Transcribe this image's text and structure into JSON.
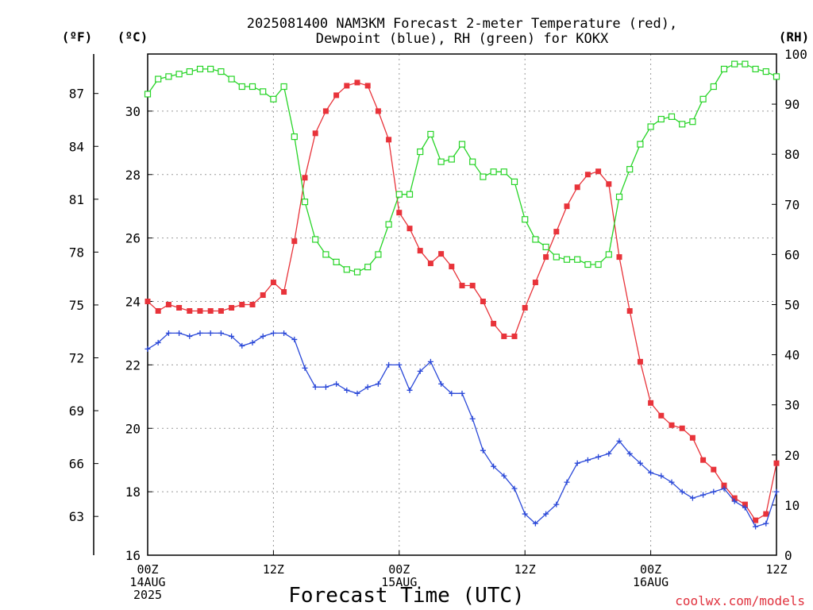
{
  "chart_data": {
    "type": "line",
    "title_lines": [
      "2025081400 NAM3KM Forecast 2-meter Temperature (red),",
      "Dewpoint (blue), RH (green) for KOKX"
    ],
    "xlabel": "Forecast Time (UTC)",
    "credit": "coolwx.com/models",
    "units": {
      "fahrenheit": "(ºF)",
      "celsius": "(ºC)",
      "rh": "(RH)"
    },
    "grid": true,
    "x_hours_range": [
      0,
      60
    ],
    "x_ticks": [
      {
        "hour": 0,
        "lines": [
          "00Z",
          "14AUG",
          "2025"
        ]
      },
      {
        "hour": 12,
        "lines": [
          "12Z"
        ]
      },
      {
        "hour": 24,
        "lines": [
          "00Z",
          "15AUG"
        ]
      },
      {
        "hour": 36,
        "lines": [
          "12Z"
        ]
      },
      {
        "hour": 48,
        "lines": [
          "00Z",
          "16AUG"
        ]
      },
      {
        "hour": 60,
        "lines": [
          "12Z"
        ]
      }
    ],
    "celsius_axis": {
      "range": [
        16,
        31.8
      ],
      "ticks": [
        16,
        18,
        20,
        22,
        24,
        26,
        28,
        30
      ]
    },
    "fahrenheit_ticks": [
      63,
      66,
      69,
      72,
      75,
      78,
      81,
      84,
      87
    ],
    "rh_axis": {
      "range": [
        0,
        100
      ],
      "ticks": [
        0,
        10,
        20,
        30,
        40,
        50,
        60,
        70,
        80,
        90,
        100
      ]
    },
    "series": [
      {
        "name": "Temperature",
        "color": "#e8333a",
        "marker": "filled-square",
        "axis": "celsius",
        "start_hour": 0,
        "step_hours": 1,
        "values": [
          24.0,
          23.7,
          23.9,
          23.8,
          23.7,
          23.7,
          23.7,
          23.7,
          23.8,
          23.9,
          23.9,
          24.2,
          24.6,
          24.3,
          25.9,
          27.9,
          29.3,
          30.0,
          30.5,
          30.8,
          30.9,
          30.8,
          30.0,
          29.1,
          26.8,
          26.3,
          25.6,
          25.2,
          25.5,
          25.1,
          24.5,
          24.5,
          24.0,
          23.3,
          22.9,
          22.9,
          23.8,
          24.6,
          25.4,
          26.2,
          27.0,
          27.6,
          28.0,
          28.1,
          27.7,
          25.4,
          23.7,
          22.1,
          20.8,
          20.4,
          20.1,
          20.0,
          19.7,
          19.0,
          18.7,
          18.2,
          17.8,
          17.6,
          17.1,
          17.3,
          18.9
        ]
      },
      {
        "name": "Dewpoint",
        "color": "#2a48d8",
        "marker": "plus",
        "axis": "celsius",
        "start_hour": 0,
        "step_hours": 1,
        "values": [
          22.5,
          22.7,
          23.0,
          23.0,
          22.9,
          23.0,
          23.0,
          23.0,
          22.9,
          22.6,
          22.7,
          22.9,
          23.0,
          23.0,
          22.8,
          21.9,
          21.3,
          21.3,
          21.4,
          21.2,
          21.1,
          21.3,
          21.4,
          22.0,
          22.0,
          21.2,
          21.8,
          22.1,
          21.4,
          21.1,
          21.1,
          20.3,
          19.3,
          18.8,
          18.5,
          18.1,
          17.3,
          17.0,
          17.3,
          17.6,
          18.3,
          18.9,
          19.0,
          19.1,
          19.2,
          19.6,
          19.2,
          18.9,
          18.6,
          18.5,
          18.3,
          18.0,
          17.8,
          17.9,
          18.0,
          18.1,
          17.7,
          17.5,
          16.9,
          17.0,
          18.0
        ]
      },
      {
        "name": "RH",
        "color": "#27d427",
        "marker": "open-square",
        "axis": "rh",
        "start_hour": 0,
        "step_hours": 1,
        "values": [
          92.0,
          95.0,
          95.5,
          96.0,
          96.5,
          97.0,
          97.0,
          96.5,
          95.0,
          93.5,
          93.5,
          92.5,
          91.0,
          93.5,
          83.5,
          70.5,
          63.0,
          60.0,
          58.5,
          57.0,
          56.5,
          57.5,
          60.0,
          66.0,
          72.0,
          72.0,
          80.5,
          84.0,
          78.5,
          79.0,
          82.0,
          78.5,
          75.5,
          76.5,
          76.5,
          74.5,
          67.0,
          63.0,
          61.5,
          59.5,
          59.0,
          59.0,
          58.0,
          58.0,
          60.0,
          71.5,
          77.0,
          82.0,
          85.5,
          87.0,
          87.5,
          86.0,
          86.5,
          91.0,
          93.5,
          97.0,
          98.0,
          98.0,
          97.0,
          96.5,
          95.5
        ]
      }
    ]
  }
}
